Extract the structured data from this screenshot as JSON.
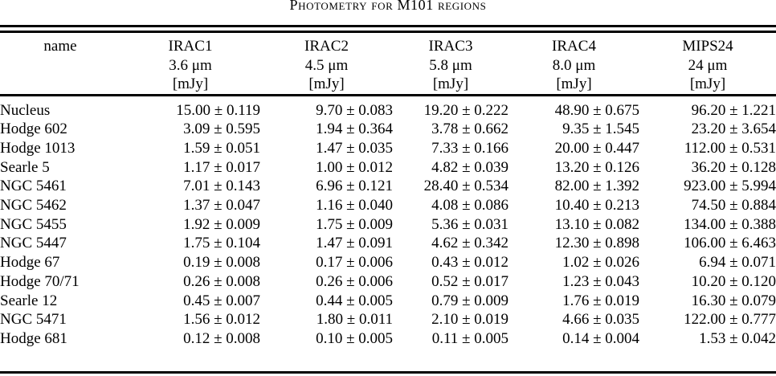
{
  "page": {
    "background_color": "#ffffff",
    "text_color": "#000000"
  },
  "title": "Photometry for M101 regions",
  "table": {
    "columns": [
      {
        "band": "name",
        "wavelength": "",
        "unit": ""
      },
      {
        "band": "IRAC1",
        "wavelength": "3.6 μm",
        "unit": "[mJy]"
      },
      {
        "band": "IRAC2",
        "wavelength": "4.5 μm",
        "unit": "[mJy]"
      },
      {
        "band": "IRAC3",
        "wavelength": "5.8 μm",
        "unit": "[mJy]"
      },
      {
        "band": "IRAC4",
        "wavelength": "8.0 μm",
        "unit": "[mJy]"
      },
      {
        "band": "MIPS24",
        "wavelength": "24 μm",
        "unit": "[mJy]"
      }
    ],
    "rows": [
      {
        "name": "Nucleus",
        "values": [
          "15.00 ± 0.119",
          "9.70 ± 0.083",
          "19.20 ± 0.222",
          "48.90 ± 0.675",
          "96.20 ± 1.221"
        ]
      },
      {
        "name": "Hodge 602",
        "values": [
          "3.09 ± 0.595",
          "1.94 ± 0.364",
          "3.78 ± 0.662",
          "9.35 ± 1.545",
          "23.20 ± 3.654"
        ]
      },
      {
        "name": "Hodge 1013",
        "values": [
          "1.59 ± 0.051",
          "1.47 ± 0.035",
          "7.33 ± 0.166",
          "20.00 ± 0.447",
          "112.00 ± 0.531"
        ]
      },
      {
        "name": "Searle 5",
        "values": [
          "1.17 ± 0.017",
          "1.00 ± 0.012",
          "4.82 ± 0.039",
          "13.20 ± 0.126",
          "36.20 ± 0.128"
        ]
      },
      {
        "name": "NGC 5461",
        "values": [
          "7.01 ± 0.143",
          "6.96 ± 0.121",
          "28.40 ± 0.534",
          "82.00 ± 1.392",
          "923.00 ± 5.994"
        ]
      },
      {
        "name": "NGC 5462",
        "values": [
          "1.37 ± 0.047",
          "1.16 ± 0.040",
          "4.08 ± 0.086",
          "10.40 ± 0.213",
          "74.50 ± 0.884"
        ]
      },
      {
        "name": "NGC 5455",
        "values": [
          "1.92 ± 0.009",
          "1.75 ± 0.009",
          "5.36 ± 0.031",
          "13.10 ± 0.082",
          "134.00 ± 0.388"
        ]
      },
      {
        "name": "NGC 5447",
        "values": [
          "1.75 ± 0.104",
          "1.47 ± 0.091",
          "4.62 ± 0.342",
          "12.30 ± 0.898",
          "106.00 ± 6.463"
        ]
      },
      {
        "name": "Hodge 67",
        "values": [
          "0.19 ± 0.008",
          "0.17 ± 0.006",
          "0.43 ± 0.012",
          "1.02 ± 0.026",
          "6.94 ± 0.071"
        ]
      },
      {
        "name": "Hodge 70/71",
        "values": [
          "0.26 ± 0.008",
          "0.26 ± 0.006",
          "0.52 ± 0.017",
          "1.23 ± 0.043",
          "10.20 ± 0.120"
        ]
      },
      {
        "name": "Searle 12",
        "values": [
          "0.45 ± 0.007",
          "0.44 ± 0.005",
          "0.79 ± 0.009",
          "1.76 ± 0.019",
          "16.30 ± 0.079"
        ]
      },
      {
        "name": "NGC 5471",
        "values": [
          "1.56 ± 0.012",
          "1.80 ± 0.011",
          "2.10 ± 0.019",
          "4.66 ± 0.035",
          "122.00 ± 0.777"
        ]
      },
      {
        "name": "Hodge 681",
        "values": [
          "0.12 ± 0.008",
          "0.10 ± 0.005",
          "0.11 ± 0.005",
          "0.14 ± 0.004",
          "1.53 ± 0.042"
        ]
      }
    ]
  }
}
